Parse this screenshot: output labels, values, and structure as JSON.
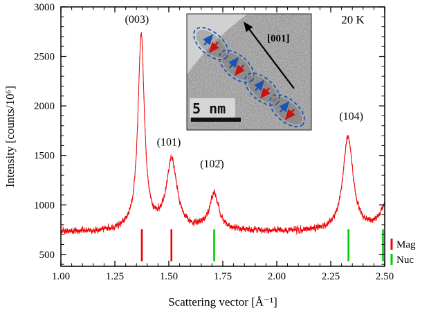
{
  "chart_data": {
    "type": "line",
    "title": "",
    "xlabel": "Scattering vector [Å⁻¹]",
    "ylabel": "Intensity [counts/10⁶]",
    "xlim": [
      1.0,
      2.5
    ],
    "ylim": [
      380,
      3000
    ],
    "x_ticks": [
      1.0,
      1.25,
      1.5,
      1.75,
      2.0,
      2.25,
      2.5
    ],
    "x_tick_labels": [
      "1.00",
      "1.25",
      "1.50",
      "1.75",
      "2.00",
      "2.25",
      "2.50"
    ],
    "y_ticks": [
      500,
      1000,
      1500,
      2000,
      2500,
      3000
    ],
    "y_tick_labels": [
      "500",
      "1000",
      "1500",
      "2000",
      "2500",
      "3000"
    ],
    "x_minor_step": 0.05,
    "y_minor_step": 100,
    "grid": false,
    "series_color": "#ee0000",
    "baseline": 730,
    "noise_amplitude": 20,
    "peaks": [
      {
        "label": "(003)",
        "center": 1.372,
        "peak_intensity": 2710,
        "amplitude": 1980,
        "width": 0.018,
        "label_x": 1.352,
        "label_y": 2840
      },
      {
        "label": "(101)",
        "center": 1.513,
        "peak_intensity": 1450,
        "amplitude": 700,
        "width": 0.03,
        "label_x": 1.5,
        "label_y": 1600
      },
      {
        "label": "(102̄)",
        "center": 1.71,
        "peak_intensity": 1100,
        "amplitude": 370,
        "width": 0.026,
        "label_x": 1.7,
        "label_y": 1380
      },
      {
        "label": "(104)",
        "center": 2.33,
        "peak_intensity": 1700,
        "amplitude": 950,
        "width": 0.028,
        "label_x": 2.345,
        "label_y": 1860
      },
      {
        "label": "",
        "center": 2.515,
        "peak_intensity": 1060,
        "amplitude": 330,
        "width": 0.035,
        "label_x": 0,
        "label_y": 0
      }
    ],
    "bragg_ticks": {
      "mag": {
        "color": "#ee0000",
        "positions": [
          1.375,
          1.512
        ],
        "y_from": 430,
        "y_to": 755
      },
      "nuc": {
        "color": "#00cc00",
        "positions": [
          1.71,
          2.332,
          2.492
        ],
        "y_from": 430,
        "y_to": 755
      }
    },
    "temperature_label": "20 K",
    "legend": [
      {
        "label": "Mag",
        "color": "#ee0000"
      },
      {
        "label": "Nuc",
        "color": "#00cc00"
      }
    ]
  },
  "inset": {
    "scale_bar_label": "5 nm",
    "direction_label": "[001]",
    "ellipse_color": "#1a53b0",
    "spin_up_color": "#1a53b0",
    "spin_down_color": "#cc1111"
  }
}
